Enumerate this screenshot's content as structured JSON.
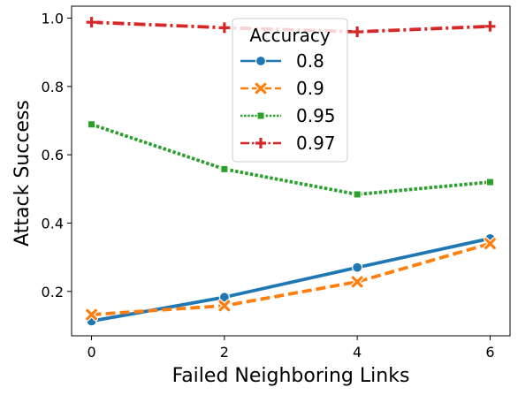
{
  "chart_data": {
    "type": "line",
    "title": "",
    "xlabel": "Failed Neighboring Links",
    "ylabel": "Attack Success",
    "x": [
      0,
      2,
      4,
      6
    ],
    "xlim": [
      -0.3,
      6.3
    ],
    "ylim": [
      0.07,
      1.035
    ],
    "xticks": [
      0,
      2,
      4,
      6
    ],
    "xtick_labels": [
      "0",
      "2",
      "4",
      "6"
    ],
    "yticks": [
      0.2,
      0.4,
      0.6,
      0.8,
      1.0
    ],
    "ytick_labels": [
      "0.2",
      "0.4",
      "0.6",
      "0.8",
      "1.0"
    ],
    "grid": false,
    "legend": {
      "title": "Accuracy",
      "position": "top-center"
    },
    "series": [
      {
        "name": "0.8",
        "values": [
          0.113,
          0.183,
          0.27,
          0.355
        ],
        "color": "#1f77b4",
        "marker": "circle",
        "dash": "solid"
      },
      {
        "name": "0.9",
        "values": [
          0.132,
          0.158,
          0.228,
          0.34
        ],
        "color": "#ff7f0e",
        "marker": "x",
        "dash": "dashed"
      },
      {
        "name": "0.95",
        "values": [
          0.689,
          0.558,
          0.484,
          0.52
        ],
        "color": "#2ca02c",
        "marker": "square",
        "dash": "dotted"
      },
      {
        "name": "0.97",
        "values": [
          0.988,
          0.972,
          0.96,
          0.976
        ],
        "color": "#d62728",
        "marker": "plus",
        "dash": "dashdot"
      }
    ]
  }
}
